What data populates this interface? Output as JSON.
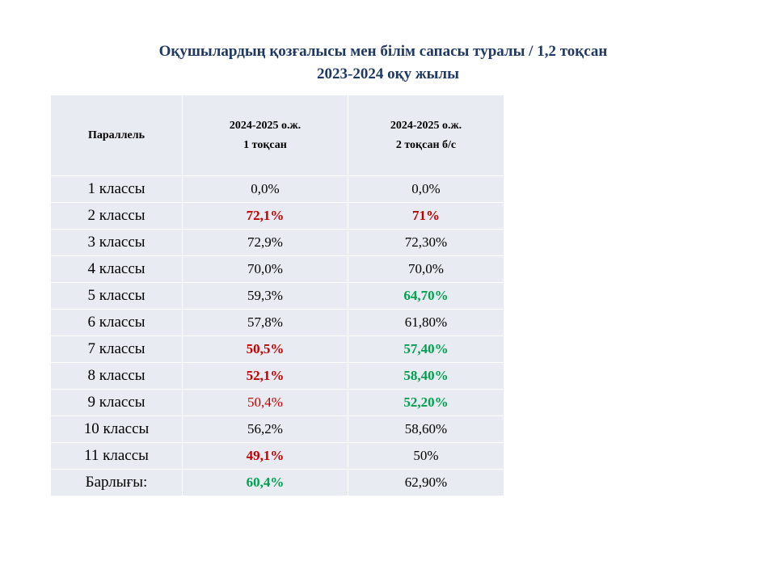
{
  "title": {
    "line1": "Оқушылардың қозғалысы мен білім сапасы туралы / 1,2  тоқсан",
    "line2": "2023-2024 оқу жылы"
  },
  "table": {
    "headers": [
      {
        "lines": [
          "Параллель"
        ]
      },
      {
        "lines": [
          "2024-2025 о.ж.",
          "1 тоқсан"
        ]
      },
      {
        "lines": [
          "2024-2025 о.ж.",
          "2 тоқсан б/с"
        ]
      }
    ],
    "rows": [
      {
        "label": "1 классы",
        "q1": "0,0%",
        "q2": "0,0%"
      },
      {
        "label": "2 классы",
        "q1": "72,1%",
        "q2": "71%"
      },
      {
        "label": "3 классы",
        "q1": "72,9%",
        "q2": "72,30%"
      },
      {
        "label": "4 классы",
        "q1": "70,0%",
        "q2": "70,0%"
      },
      {
        "label": "5 классы",
        "q1": "59,3%",
        "q2": "64,70%"
      },
      {
        "label": "6 классы",
        "q1": "57,8%",
        "q2": "61,80%"
      },
      {
        "label": "7 классы",
        "q1": "50,5%",
        "q2": "57,40%"
      },
      {
        "label": "8 классы",
        "q1": "52,1%",
        "q2": "58,40%"
      },
      {
        "label": "9 классы",
        "q1": "50,4%",
        "q2": "52,20%"
      },
      {
        "label": "10 классы",
        "q1": "56,2%",
        "q2": "58,60%"
      },
      {
        "label": "11 классы",
        "q1": "49,1%",
        "q2": "50%"
      },
      {
        "label": "Барлығы:",
        "q1": "60,4%",
        "q2": "62,90%"
      }
    ]
  },
  "colors": {
    "title": "#1f3864",
    "table_background": "#e8ebf1",
    "highlight_red": "#c00000",
    "highlight_green": "#00a050"
  }
}
